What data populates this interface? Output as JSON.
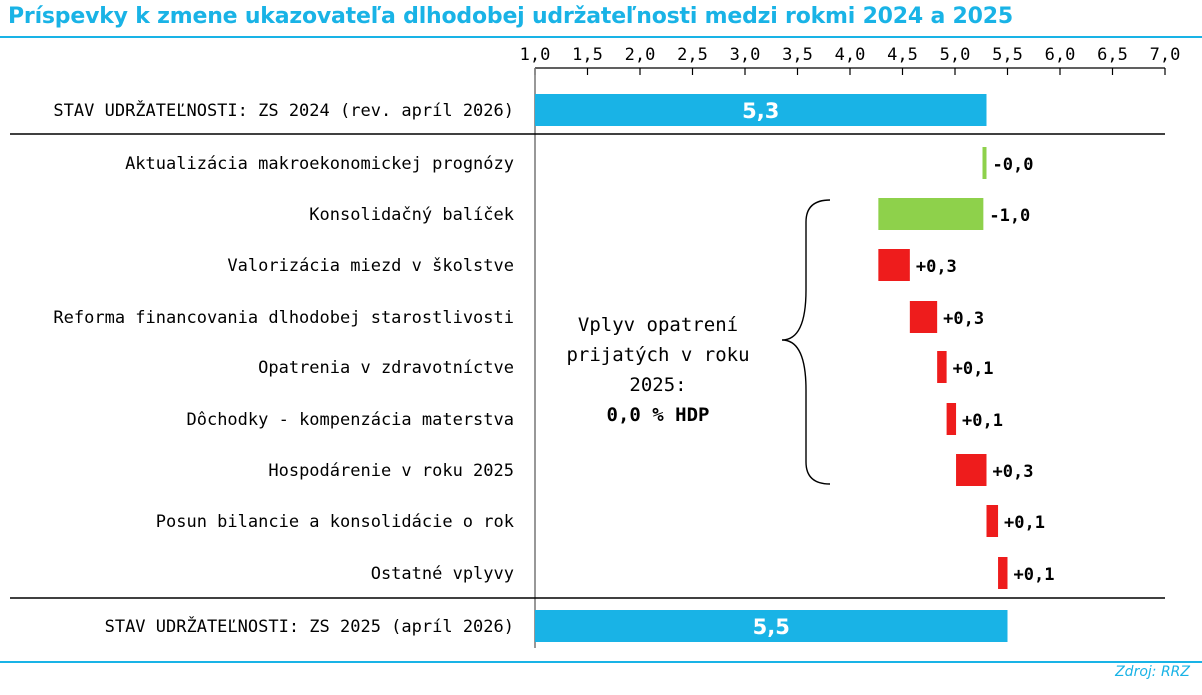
{
  "title": "Príspevky k zmene ukazovateľa dlhodobej udržateľnosti medzi rokmi 2024 a 2025",
  "source": "Zdroj: RRZ",
  "colors": {
    "total": "#19b3e6",
    "decrease": "#8ed14b",
    "increase": "#ee1c1c",
    "title": "#19b3e6"
  },
  "chart_data": {
    "type": "bar",
    "subtype": "waterfall",
    "x_axis": {
      "min": 1.0,
      "max": 7.0,
      "step": 0.5,
      "position": "top",
      "tick_labels": [
        "1,0",
        "1,5",
        "2,0",
        "2,5",
        "3,0",
        "3,5",
        "4,0",
        "4,5",
        "5,0",
        "5,5",
        "6,0",
        "6,5",
        "7,0"
      ]
    },
    "grid": false,
    "legend": "none",
    "categories": [
      "STAV UDRŽATEĽNOSTI: ZS 2024 (rev. apríl 2026)",
      "Aktualizácia makroekonomickej prognózy",
      "Konsolidačný balíček",
      "Valorizácia miezd v školstve",
      "Reforma financovania dlhodobej starostlivosti",
      "Opatrenia v zdravotníctve",
      "Dôchodky - kompenzácia materstva",
      "Hospodárenie v roku 2025",
      "Posun bilancie a konsolidácie o rok",
      "Ostatné vplyvy",
      "STAV UDRŽATEĽNOSTI: ZS 2025 (apríl 2026)"
    ],
    "bars": [
      {
        "kind": "total",
        "start": 1.0,
        "end": 5.3,
        "label": "5,3"
      },
      {
        "kind": "decrease",
        "start": 5.3,
        "end": 5.27,
        "label": "-0,0"
      },
      {
        "kind": "decrease",
        "start": 5.27,
        "end": 4.27,
        "label": "-1,0"
      },
      {
        "kind": "increase",
        "start": 4.27,
        "end": 4.57,
        "label": "+0,3"
      },
      {
        "kind": "increase",
        "start": 4.57,
        "end": 4.83,
        "label": "+0,3"
      },
      {
        "kind": "increase",
        "start": 4.83,
        "end": 4.92,
        "label": "+0,1"
      },
      {
        "kind": "increase",
        "start": 4.92,
        "end": 5.01,
        "label": "+0,1"
      },
      {
        "kind": "increase",
        "start": 5.01,
        "end": 5.3,
        "label": "+0,3"
      },
      {
        "kind": "increase",
        "start": 5.3,
        "end": 5.41,
        "label": "+0,1"
      },
      {
        "kind": "increase",
        "start": 5.41,
        "end": 5.5,
        "label": "+0,1"
      },
      {
        "kind": "total",
        "start": 1.0,
        "end": 5.5,
        "label": "5,5"
      }
    ],
    "annotation": {
      "lines": [
        "Vplyv opatrení",
        "prijatých v roku",
        "2025:"
      ],
      "value": "0,0 % HDP"
    }
  }
}
